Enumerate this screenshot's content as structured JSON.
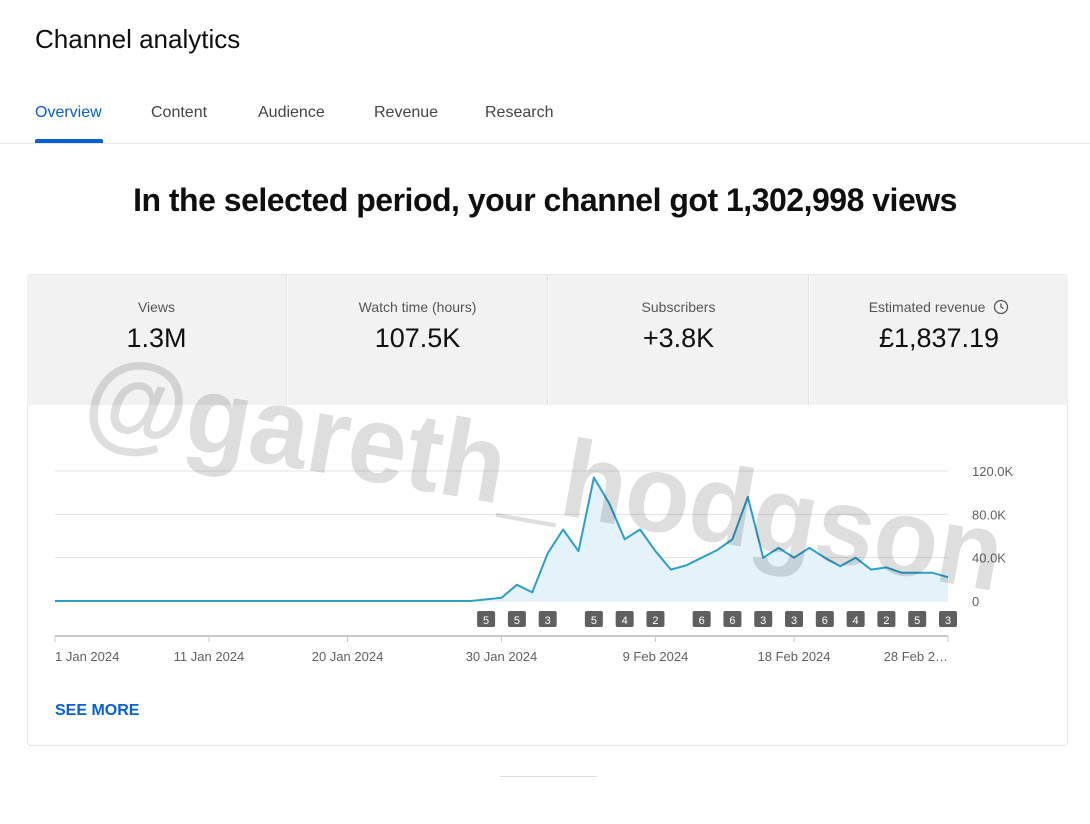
{
  "header": {
    "title": "Channel analytics"
  },
  "tabs": [
    "Overview",
    "Content",
    "Audience",
    "Revenue",
    "Research"
  ],
  "active_tab": 0,
  "headline": "In the selected period, your channel got 1,302,998 views",
  "metrics": [
    {
      "label": "Views",
      "value": "1.3M"
    },
    {
      "label": "Watch time (hours)",
      "value": "107.5K"
    },
    {
      "label": "Subscribers",
      "value": "+3.8K"
    },
    {
      "label": "Estimated revenue",
      "value": "£1,837.19"
    }
  ],
  "chart_data": {
    "type": "line",
    "color": "#2e9ec9",
    "fill": "#e4f2fa",
    "categories": [
      "1 Jan 2024",
      null,
      null,
      null,
      null,
      null,
      null,
      null,
      null,
      null,
      "11 Jan 2024",
      null,
      null,
      null,
      null,
      null,
      null,
      null,
      null,
      "20 Jan 2024",
      null,
      null,
      null,
      null,
      null,
      null,
      null,
      null,
      null,
      "30 Jan 2024",
      null,
      null,
      null,
      null,
      null,
      null,
      null,
      null,
      null,
      "9 Feb 2024",
      null,
      null,
      null,
      null,
      null,
      null,
      null,
      null,
      "18 Feb 2024",
      null,
      null,
      null,
      null,
      null,
      null,
      null,
      null,
      null,
      "28 Feb 2…"
    ],
    "values": [
      0,
      0,
      0,
      0,
      0,
      0,
      0,
      0,
      0,
      0,
      0,
      0,
      0,
      0,
      0,
      0,
      0,
      0,
      0,
      0,
      0,
      0,
      0,
      0,
      0,
      0,
      0,
      0,
      1500,
      3000,
      15000,
      8000,
      44000,
      66000,
      46000,
      114000,
      90000,
      57000,
      66000,
      46000,
      29000,
      33000,
      40000,
      47000,
      57000,
      96000,
      40000,
      49000,
      40000,
      49000,
      40000,
      32000,
      40000,
      29000,
      31000,
      26000,
      26000,
      26000,
      22000
    ],
    "markers": [
      null,
      null,
      null,
      null,
      null,
      null,
      null,
      null,
      null,
      null,
      null,
      null,
      null,
      null,
      null,
      null,
      null,
      null,
      null,
      null,
      null,
      null,
      null,
      null,
      null,
      null,
      null,
      null,
      5,
      null,
      5,
      null,
      3,
      null,
      null,
      5,
      null,
      4,
      null,
      2,
      null,
      null,
      6,
      null,
      6,
      null,
      3,
      null,
      3,
      null,
      6,
      null,
      4,
      null,
      2,
      null,
      5,
      null,
      3
    ],
    "ylim": [
      0,
      120000
    ],
    "yticks": [
      0,
      {
        "value": 40000,
        "label": "40.0K"
      },
      {
        "value": 80000,
        "label": "80.0K"
      },
      {
        "value": 120000,
        "label": "120.0K"
      }
    ],
    "grid": true
  },
  "see_more": "SEE MORE",
  "watermark": "@gareth_hodgson"
}
